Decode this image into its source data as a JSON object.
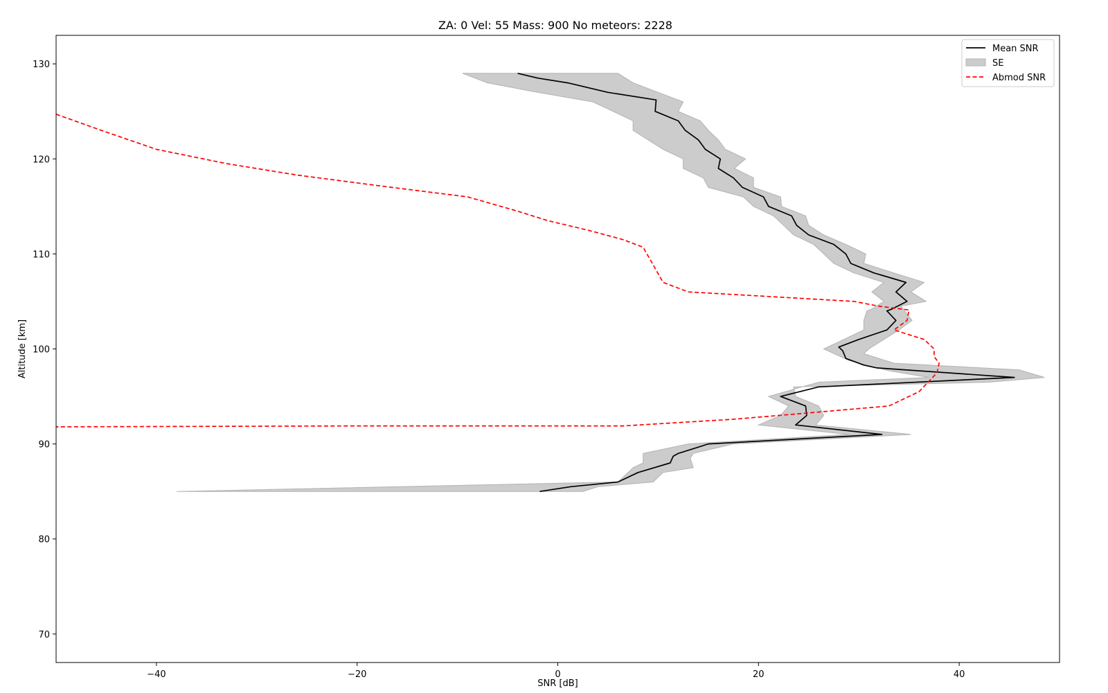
{
  "chart_data": {
    "type": "line",
    "title": "ZA: 0 Vel: 55 Mass: 900 No meteors: 2228",
    "xlabel": "SNR [dB]",
    "ylabel": "Altitude [km]",
    "xlim": [
      -50,
      50
    ],
    "ylim": [
      67,
      133
    ],
    "xticks": [
      -40,
      -20,
      0,
      20,
      40
    ],
    "yticks": [
      70,
      80,
      90,
      100,
      110,
      120,
      130
    ],
    "grid": false,
    "legend_placement": "upper-right",
    "series": [
      {
        "name": "Mean SNR",
        "style": "solid",
        "color": "#000000",
        "points": [
          [
            -4,
            129
          ],
          [
            -2,
            128.5
          ],
          [
            1,
            128
          ],
          [
            5,
            127
          ],
          [
            9.8,
            126.2
          ],
          [
            9.7,
            125
          ],
          [
            12,
            124
          ],
          [
            12.7,
            123
          ],
          [
            14,
            122
          ],
          [
            14.7,
            121
          ],
          [
            16.2,
            120
          ],
          [
            16,
            119
          ],
          [
            17.5,
            118
          ],
          [
            18.4,
            117
          ],
          [
            20.5,
            116
          ],
          [
            21,
            115
          ],
          [
            23.3,
            114
          ],
          [
            23.8,
            113
          ],
          [
            25,
            112
          ],
          [
            27.5,
            111
          ],
          [
            28.7,
            110
          ],
          [
            29.2,
            109
          ],
          [
            31.5,
            108
          ],
          [
            34.7,
            107
          ],
          [
            33.7,
            106
          ],
          [
            34.8,
            105
          ],
          [
            33.3,
            104.2
          ],
          [
            32.8,
            104
          ],
          [
            33.7,
            103
          ],
          [
            32.8,
            102
          ],
          [
            30,
            101
          ],
          [
            28,
            100.2
          ],
          [
            28.4,
            99.8
          ],
          [
            28.7,
            99
          ],
          [
            30.5,
            98.3
          ],
          [
            31.8,
            98
          ],
          [
            45.5,
            97
          ],
          [
            26,
            96
          ],
          [
            22.2,
            95
          ],
          [
            24.7,
            94
          ],
          [
            24.8,
            93
          ],
          [
            23.7,
            92
          ],
          [
            32.3,
            91
          ],
          [
            15,
            90
          ],
          [
            12,
            89
          ],
          [
            11.5,
            88.7
          ],
          [
            11.2,
            88
          ],
          [
            8,
            87
          ],
          [
            6,
            86
          ],
          [
            1.3,
            85.5
          ],
          [
            -1.8,
            85
          ]
        ]
      },
      {
        "name": "SE",
        "style": "fill",
        "color": "#cccccc",
        "upper": [
          [
            6,
            129
          ],
          [
            7.5,
            128
          ],
          [
            10,
            127
          ],
          [
            12.5,
            126
          ],
          [
            12,
            125
          ],
          [
            14.2,
            124
          ],
          [
            15,
            123
          ],
          [
            16,
            122
          ],
          [
            16.7,
            121
          ],
          [
            18.7,
            120
          ],
          [
            17.6,
            119
          ],
          [
            19.5,
            118
          ],
          [
            19.5,
            117
          ],
          [
            22.2,
            116
          ],
          [
            22.3,
            115
          ],
          [
            24.7,
            114
          ],
          [
            25,
            113
          ],
          [
            26.5,
            112
          ],
          [
            28.7,
            111
          ],
          [
            30.7,
            110
          ],
          [
            30.5,
            109
          ],
          [
            33.5,
            108
          ],
          [
            36.5,
            107
          ],
          [
            35.2,
            106
          ],
          [
            36.7,
            105
          ],
          [
            34.2,
            104.5
          ],
          [
            35.3,
            103
          ],
          [
            34,
            102
          ],
          [
            32.5,
            101
          ],
          [
            31,
            100
          ],
          [
            30.5,
            99.5
          ],
          [
            33.5,
            98.5
          ],
          [
            46,
            97.8
          ],
          [
            48.5,
            97
          ],
          [
            43,
            96.5
          ],
          [
            23.5,
            96
          ],
          [
            23.7,
            95
          ],
          [
            26,
            94
          ],
          [
            26.5,
            93
          ],
          [
            25.7,
            92
          ],
          [
            35.2,
            91
          ],
          [
            17.5,
            90
          ],
          [
            13.5,
            89
          ],
          [
            13.2,
            88.5
          ],
          [
            13.5,
            87.5
          ],
          [
            10.5,
            87
          ],
          [
            9.5,
            86
          ],
          [
            4,
            85.5
          ],
          [
            2.5,
            85
          ]
        ],
        "lower": [
          [
            -9.5,
            129
          ],
          [
            -7,
            128
          ],
          [
            -2,
            127
          ],
          [
            3.5,
            126
          ],
          [
            5.5,
            125
          ],
          [
            7.5,
            124
          ],
          [
            7.5,
            123
          ],
          [
            9,
            122
          ],
          [
            10.5,
            121
          ],
          [
            12.5,
            120
          ],
          [
            12.5,
            119
          ],
          [
            14.5,
            118
          ],
          [
            15,
            117
          ],
          [
            18.5,
            116
          ],
          [
            19.5,
            115
          ],
          [
            21.5,
            114
          ],
          [
            22.5,
            113
          ],
          [
            23.5,
            112
          ],
          [
            25.5,
            111
          ],
          [
            26.5,
            110
          ],
          [
            27.5,
            109
          ],
          [
            29.5,
            108
          ],
          [
            32.5,
            107
          ],
          [
            31.3,
            106
          ],
          [
            32.5,
            105
          ],
          [
            31.3,
            104.2
          ],
          [
            30.8,
            104
          ],
          [
            30.5,
            103
          ],
          [
            30.5,
            102
          ],
          [
            28.5,
            101
          ],
          [
            26.5,
            100
          ],
          [
            29,
            98.8
          ],
          [
            33,
            97.7
          ],
          [
            37,
            97
          ],
          [
            26,
            96.5
          ],
          [
            21,
            95
          ],
          [
            23,
            94
          ],
          [
            22.2,
            93
          ],
          [
            20,
            92
          ],
          [
            29,
            91
          ],
          [
            13,
            90
          ],
          [
            8.5,
            89
          ],
          [
            8.5,
            88
          ],
          [
            7.5,
            87.5
          ],
          [
            6,
            86
          ],
          [
            -38,
            85
          ]
        ]
      },
      {
        "name": "Abmod SNR",
        "style": "dashed",
        "color": "#ff0000",
        "points": [
          [
            -50,
            124.7
          ],
          [
            -45.5,
            123
          ],
          [
            -40,
            121
          ],
          [
            -33,
            119.5
          ],
          [
            -26,
            118.3
          ],
          [
            -18,
            117.2
          ],
          [
            -9,
            116
          ],
          [
            -7,
            115.4
          ],
          [
            -4,
            114.5
          ],
          [
            -1,
            113.5
          ],
          [
            3,
            112.5
          ],
          [
            6.5,
            111.5
          ],
          [
            8.5,
            110.7
          ],
          [
            10.5,
            107
          ],
          [
            13,
            106
          ],
          [
            29.5,
            105
          ],
          [
            32,
            104.5
          ],
          [
            35,
            104.1
          ],
          [
            34.8,
            103
          ],
          [
            33.5,
            102
          ],
          [
            36.5,
            101
          ],
          [
            37.5,
            100
          ],
          [
            37.5,
            99.2
          ],
          [
            38,
            98.5
          ],
          [
            37.8,
            97.5
          ],
          [
            36,
            95.5
          ],
          [
            33,
            94
          ],
          [
            24.3,
            93.2
          ],
          [
            17.5,
            92.6
          ],
          [
            6.5,
            91.9
          ],
          [
            -20,
            91.9
          ],
          [
            -50,
            91.8
          ]
        ]
      }
    ]
  }
}
